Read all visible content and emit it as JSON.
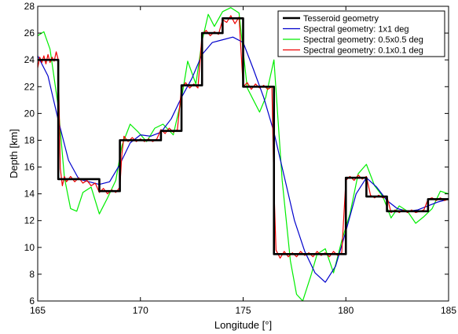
{
  "chart_data": {
    "type": "line",
    "title": "",
    "xlabel": "Longitude [°]",
    "ylabel": "Depth [km]",
    "xlim": [
      165,
      185
    ],
    "ylim": [
      6,
      28
    ],
    "xticks": [
      165,
      170,
      175,
      180,
      185
    ],
    "yticks": [
      6,
      8,
      10,
      12,
      14,
      16,
      18,
      20,
      22,
      24,
      26,
      28
    ],
    "grid": false,
    "legend_position": "top-right",
    "series": [
      {
        "name": "Tesseroid geometry",
        "color": "#000000",
        "x": [
          165,
          166,
          166,
          168,
          168,
          169,
          169,
          171,
          171,
          172,
          172,
          173,
          173,
          174,
          174,
          175,
          175,
          176.5,
          176.5,
          180,
          180,
          181,
          181,
          182,
          182,
          184,
          184,
          185
        ],
        "y": [
          24,
          24,
          15.1,
          15.1,
          14.2,
          14.2,
          18,
          18,
          18.7,
          18.7,
          22.1,
          22.1,
          26,
          26,
          27.1,
          27.1,
          22,
          22,
          9.5,
          9.5,
          15.2,
          15.2,
          13.8,
          13.8,
          12.7,
          12.7,
          13.6,
          13.6
        ]
      },
      {
        "name": "Spectral geometry: 1x1 deg",
        "color": "#0000cc",
        "x": [
          165,
          165.5,
          166,
          166.5,
          167,
          167.5,
          168,
          168.5,
          169,
          169.5,
          170,
          170.5,
          171,
          171.5,
          172,
          172.5,
          173,
          173.5,
          174,
          174.5,
          175,
          175.5,
          176,
          176.5,
          177,
          177.5,
          178,
          178.5,
          179,
          179.5,
          180,
          180.5,
          181,
          181.5,
          182,
          182.5,
          183,
          183.5,
          184,
          184.5,
          185
        ],
        "y": [
          24.3,
          22.8,
          19.5,
          16.5,
          15.1,
          14.9,
          14.7,
          14.9,
          16.2,
          17.8,
          18.4,
          18.3,
          18.6,
          19.6,
          21.2,
          22.6,
          24.4,
          25.3,
          25.5,
          25.7,
          25.3,
          23.3,
          21.2,
          18.6,
          15.3,
          12.0,
          9.7,
          8.1,
          7.4,
          8.6,
          11.2,
          14.0,
          15.2,
          14.5,
          13.5,
          12.9,
          12.7,
          12.8,
          13.1,
          13.4,
          13.6
        ]
      },
      {
        "name": "Spectral geometry: 0.5x0.5 deg",
        "color": "#00ee00",
        "x": [
          165,
          165.3,
          165.6,
          166,
          166.3,
          166.6,
          166.9,
          167.2,
          167.6,
          168,
          168.4,
          168.8,
          169.1,
          169.5,
          169.9,
          170.3,
          170.7,
          171.1,
          171.6,
          172,
          172.3,
          172.7,
          173,
          173.3,
          173.6,
          174,
          174.4,
          174.8,
          175.2,
          175.5,
          175.8,
          176.1,
          176.5,
          176.9,
          177.3,
          177.6,
          177.9,
          178.3,
          178.6,
          179,
          179.4,
          179.8,
          180.2,
          180.6,
          181,
          181.4,
          181.8,
          182.2,
          182.6,
          183,
          183.4,
          183.8,
          184.2,
          184.6,
          185
        ],
        "y": [
          25.8,
          26.1,
          24.8,
          20.5,
          15.2,
          12.9,
          12.7,
          14.1,
          14.5,
          12.5,
          13.7,
          15.0,
          17.6,
          19.2,
          18.6,
          17.9,
          18.9,
          19.2,
          18.4,
          21.1,
          23.9,
          22.2,
          25.4,
          27.4,
          26.5,
          27.6,
          27.9,
          27.5,
          21.9,
          21.0,
          20.1,
          21.2,
          24.0,
          15.0,
          9.0,
          6.5,
          6.0,
          7.9,
          9.5,
          9.9,
          8.1,
          10.5,
          12.5,
          15.5,
          16.2,
          14.6,
          13.8,
          12.2,
          13.1,
          12.7,
          11.8,
          12.3,
          12.9,
          14.2,
          14.0
        ]
      },
      {
        "name": "Spectral geometry: 0.1x0.1 deg",
        "color": "#ee0000",
        "x": [
          165,
          165.1,
          165.2,
          165.3,
          165.4,
          165.5,
          165.6,
          165.7,
          165.8,
          165.9,
          166,
          166.1,
          166.2,
          166.3,
          166.4,
          166.6,
          166.8,
          167,
          167.2,
          167.4,
          167.6,
          167.8,
          168,
          168.2,
          168.4,
          168.6,
          168.8,
          169,
          169.1,
          169.2,
          169.4,
          169.6,
          169.8,
          170,
          170.2,
          170.4,
          170.6,
          170.8,
          171,
          171.2,
          171.4,
          171.6,
          171.8,
          172,
          172.2,
          172.4,
          172.6,
          172.8,
          173,
          173.2,
          173.4,
          173.6,
          173.8,
          174,
          174.2,
          174.4,
          174.6,
          174.8,
          175,
          175.2,
          175.4,
          175.6,
          175.8,
          176,
          176.2,
          176.4,
          176.5,
          176.6,
          176.8,
          177,
          177.2,
          177.4,
          177.6,
          177.8,
          178,
          178.2,
          178.4,
          178.6,
          178.8,
          179,
          179.2,
          179.4,
          179.6,
          179.8,
          180,
          180.2,
          180.4,
          180.6,
          180.8,
          181,
          181.2,
          181.4,
          181.6,
          181.8,
          182,
          182.2,
          182.4,
          182.6,
          182.8,
          183,
          183.2,
          183.4,
          183.6,
          183.8,
          184,
          184.2,
          184.4,
          184.6,
          184.8,
          185
        ],
        "y": [
          23.4,
          24.2,
          23.8,
          24.3,
          23.7,
          24.4,
          23.8,
          24.2,
          23.9,
          24.6,
          24.0,
          15.9,
          14.6,
          15.3,
          14.9,
          15.3,
          14.9,
          15.2,
          14.8,
          15.0,
          14.6,
          14.8,
          14.1,
          14.4,
          14.0,
          14.3,
          14.1,
          14.5,
          17.0,
          18.3,
          17.9,
          18.2,
          17.9,
          18.1,
          17.9,
          18.1,
          17.9,
          18.1,
          18.8,
          18.5,
          18.9,
          18.6,
          18.8,
          21.9,
          22.3,
          21.9,
          22.2,
          21.9,
          25.9,
          26.2,
          25.8,
          26.1,
          25.9,
          27.0,
          26.8,
          27.3,
          26.7,
          27.2,
          22.0,
          22.3,
          21.8,
          22.2,
          21.9,
          22.1,
          21.8,
          22.0,
          14.5,
          9.8,
          9.2,
          9.7,
          9.3,
          9.6,
          9.3,
          9.7,
          9.4,
          9.6,
          9.3,
          9.7,
          9.4,
          9.6,
          9.3,
          9.7,
          9.4,
          9.6,
          15.0,
          15.3,
          15.0,
          15.4,
          15.1,
          15.3,
          13.9,
          13.7,
          13.9,
          13.7,
          13.8,
          12.6,
          12.8,
          12.6,
          12.8,
          12.6,
          12.8,
          12.6,
          12.7,
          12.8,
          13.6,
          13.7,
          13.5,
          13.7,
          13.5,
          13.6
        ]
      }
    ]
  }
}
